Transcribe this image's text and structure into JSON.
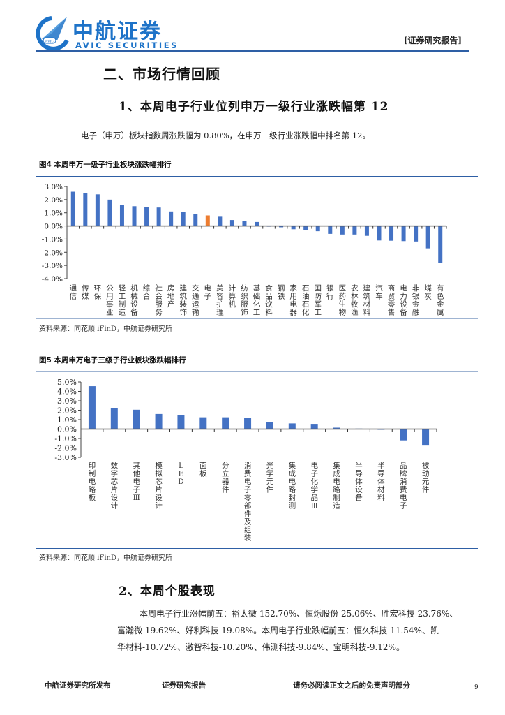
{
  "header": {
    "logo_cn": "中航证券",
    "logo_en": "AVIC SECURITIES",
    "logo_badge": "AVIC",
    "report_tag": "[证券研究报告]",
    "brand_color": "#1e73c8",
    "rule_color": "#2e5fa5"
  },
  "section": {
    "title": "二、市场行情回顾",
    "sub1_title": "1、本周电子行业位列申万一级行业涨跌幅第 12",
    "sub1_text": "电子（申万）板块指数周涨跌幅为 0.80%，在申万一级行业涨跌幅中排名第 12。",
    "sub2_title": "2、本周个股表现",
    "sub2_text_line1": "本周电子行业涨幅前五：裕太微 152.70%、恒烁股份 25.06%、胜宏科技 23.76%、",
    "sub2_text_line2": "富瀚微 19.62%、好利科技 19.08%。本周电子行业跌幅前五：恒久科技-11.54%、凯",
    "sub2_text_line3": "华材料-10.72%、激智科技-10.20%、伟测科技-9.84%、宝明科技-9.12%。"
  },
  "figures": {
    "fig4_title": "图4  本周申万一级子行业板块涨跌幅排行",
    "fig4_source": "资料来源：同花顺 iFinD，中航证券研究所",
    "fig5_title": "图5  本周申万电子三级子行业板块涨跌幅排行",
    "fig5_source": "资料来源：同花顺 iFinD，中航证券研究所"
  },
  "chart_data": [
    {
      "type": "bar",
      "title": "本周申万一级子行业板块涨跌幅排行",
      "xlabel": "",
      "ylabel": "",
      "ylim": [
        -4.0,
        3.0
      ],
      "yticks": [
        "3.0%",
        "2.0%",
        "1.0%",
        "0.0%",
        "-1.0%",
        "-2.0%",
        "-3.0%",
        "-4.0%"
      ],
      "grid": false,
      "legend": null,
      "highlight": {
        "category": "电子",
        "color": "#ed7d31"
      },
      "bar_color": "#4472c4",
      "categories": [
        "通信",
        "传媒",
        "环保",
        "公用事业",
        "轻工制造",
        "机械设备",
        "综合",
        "社会服务",
        "房地产",
        "建筑装饰",
        "交通运输",
        "电子",
        "美容护理",
        "计算机",
        "纺织服饰",
        "基础化工",
        "食品饮料",
        "钢铁",
        "家用电器",
        "石油石化",
        "国防军工",
        "银行",
        "医药生物",
        "农林牧渔",
        "建筑材料",
        "汽车",
        "商贸零售",
        "电力设备",
        "非银金融",
        "煤炭",
        "有色金属"
      ],
      "values": [
        2.6,
        2.5,
        2.4,
        2.0,
        1.6,
        1.5,
        1.45,
        1.4,
        1.1,
        1.05,
        0.9,
        0.8,
        0.7,
        0.45,
        0.4,
        0.3,
        -0.02,
        -0.1,
        -0.25,
        -0.3,
        -0.4,
        -0.6,
        -0.65,
        -0.65,
        -0.75,
        -1.1,
        -1.12,
        -1.15,
        -1.18,
        -1.7,
        -2.8
      ]
    },
    {
      "type": "bar",
      "title": "本周申万电子三级子行业板块涨跌幅排行",
      "xlabel": "",
      "ylabel": "",
      "ylim": [
        -3.0,
        5.0
      ],
      "yticks": [
        "5.0%",
        "4.0%",
        "3.0%",
        "2.0%",
        "1.0%",
        "0.0%",
        "-1.0%",
        "-2.0%",
        "-3.0%"
      ],
      "grid": false,
      "legend": null,
      "bar_color": "#4472c4",
      "categories": [
        "印制电路板",
        "数字芯片设计",
        "其他电子Ⅲ",
        "模拟芯片设计",
        "LED",
        "面板",
        "分立器件",
        "消费电子零部件及组装",
        "光学元件",
        "集成电路封测",
        "电子化学品Ⅲ",
        "集成电路制造",
        "半导体设备",
        "半导体材料",
        "品牌消费电子",
        "被动元件"
      ],
      "values": [
        4.55,
        2.2,
        2.05,
        1.6,
        1.5,
        1.25,
        1.25,
        1.15,
        0.75,
        0.6,
        0.55,
        0.15,
        0.05,
        -0.05,
        -1.2,
        -1.75
      ]
    }
  ],
  "footer": {
    "publisher": "中航证券研究所发布",
    "doc_type": "证券研究报告",
    "disclaimer": "请务必阅读正文之后的免责声明部分",
    "page_number": "9"
  }
}
